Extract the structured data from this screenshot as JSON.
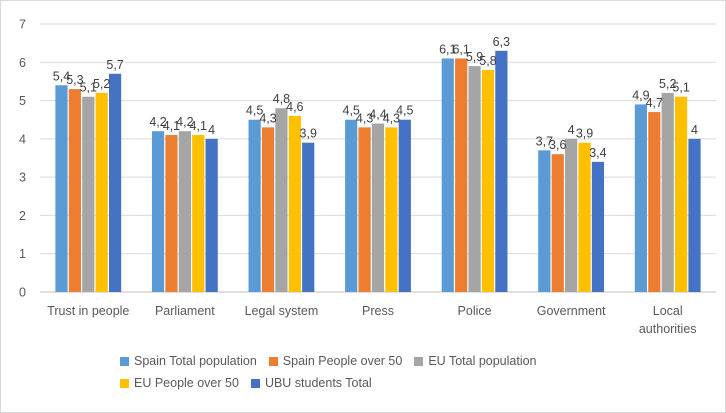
{
  "chart_data": {
    "type": "bar",
    "categories": [
      "Trust in people",
      "Parliament",
      "Legal system",
      "Press",
      "Police",
      "Government",
      "Local authorities"
    ],
    "category_lines": [
      [
        "Trust in people"
      ],
      [
        "Parliament"
      ],
      [
        "Legal system"
      ],
      [
        "Press"
      ],
      [
        "Police"
      ],
      [
        "Government"
      ],
      [
        "Local",
        "authorities"
      ]
    ],
    "series": [
      {
        "name": "Spain Total population",
        "color": "#5b9bd5",
        "values": [
          5.4,
          4.2,
          4.5,
          4.5,
          6.1,
          3.7,
          4.9
        ],
        "labels": [
          "5,4",
          "4,2",
          "4,5",
          "4,5",
          "6,1",
          "3,7",
          "4,9"
        ]
      },
      {
        "name": "Spain People over 50",
        "color": "#ed7d31",
        "values": [
          5.3,
          4.1,
          4.3,
          4.3,
          6.1,
          3.6,
          4.7
        ],
        "labels": [
          "5,3",
          "4,1",
          "4,3",
          "4,3",
          "6,1",
          "3,6",
          "4,7"
        ]
      },
      {
        "name": "EU Total population",
        "color": "#a5a5a5",
        "values": [
          5.1,
          4.2,
          4.8,
          4.4,
          5.9,
          4.0,
          5.2
        ],
        "labels": [
          "5,1",
          "4,2",
          "4,8",
          "4,4",
          "5,9",
          "4",
          "5,2"
        ]
      },
      {
        "name": "EU People over 50",
        "color": "#ffc000",
        "values": [
          5.2,
          4.1,
          4.6,
          4.3,
          5.8,
          3.9,
          5.1
        ],
        "labels": [
          "5,2",
          "4,1",
          "4,6",
          "4,3",
          "5,8",
          "3,9",
          "5,1"
        ]
      },
      {
        "name": "UBU students Total",
        "color": "#4472c4",
        "values": [
          5.7,
          4.0,
          3.9,
          4.5,
          6.3,
          3.4,
          4.0
        ],
        "labels": [
          "5,7",
          "4",
          "3,9",
          "4,5",
          "6,3",
          "3,4",
          "4"
        ]
      }
    ],
    "ylim": [
      0,
      7
    ],
    "yticks": [
      0,
      1,
      2,
      3,
      4,
      5,
      6,
      7
    ],
    "grid": true,
    "legend_position": "bottom",
    "xlabel": "",
    "ylabel": ""
  }
}
